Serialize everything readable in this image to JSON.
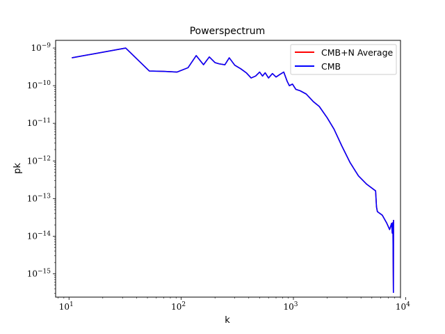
{
  "chart_data": {
    "type": "line",
    "title": "Powerspectrum",
    "xlabel": "k",
    "ylabel": "pk",
    "xscale": "log",
    "yscale": "log",
    "xlim": [
      7.6,
      9000
    ],
    "ylim": [
      2.4e-16,
      1.6e-09
    ],
    "xticks": [
      {
        "value": 10,
        "label": "10",
        "exp": "1"
      },
      {
        "value": 100,
        "label": "10",
        "exp": "2"
      },
      {
        "value": 1000,
        "label": "10",
        "exp": "3"
      },
      {
        "value": 10000,
        "label": "10",
        "exp": "4"
      }
    ],
    "yticks": [
      {
        "value": 1e-09,
        "label": "10",
        "exp": "−9"
      },
      {
        "value": 1e-10,
        "label": "10",
        "exp": "−10"
      },
      {
        "value": 1e-11,
        "label": "10",
        "exp": "−11"
      },
      {
        "value": 1e-12,
        "label": "10",
        "exp": "−12"
      },
      {
        "value": 1e-13,
        "label": "10",
        "exp": "−13"
      },
      {
        "value": 1e-14,
        "label": "10",
        "exp": "−14"
      },
      {
        "value": 1e-15,
        "label": "10",
        "exp": "−15"
      }
    ],
    "grid": false,
    "legend_position": "top-right",
    "series": [
      {
        "name": "CMB+N Average",
        "color": "#ff0000",
        "x": [
          10.6,
          32,
          52,
          70,
          92,
          115,
          136,
          158,
          178,
          200,
          218,
          245,
          268,
          300,
          340,
          380,
          420,
          460,
          500,
          530,
          560,
          600,
          650,
          700,
          760,
          820,
          880,
          920,
          980,
          1050,
          1150,
          1300,
          1500,
          1700,
          2000,
          2300,
          2700,
          3200,
          3800,
          4500,
          5400,
          5500,
          5600,
          6200,
          6800,
          7200,
          7500,
          7600,
          7700,
          7780,
          7800
        ],
        "y": [
          5.5e-10,
          1e-09,
          2.45e-10,
          2.4e-10,
          2.3e-10,
          3e-10,
          6.3e-10,
          3.6e-10,
          5.8e-10,
          4.1e-10,
          3.8e-10,
          3.6e-10,
          5.5e-10,
          3.5e-10,
          2.8e-10,
          2.2e-10,
          1.6e-10,
          1.8e-10,
          2.3e-10,
          1.8e-10,
          2.2e-10,
          1.6e-10,
          2.1e-10,
          1.7e-10,
          2e-10,
          2.3e-10,
          1.3e-10,
          1e-10,
          1.1e-10,
          8e-11,
          7.3e-11,
          6e-11,
          3.8e-11,
          2.8e-11,
          1.4e-11,
          7e-12,
          2.5e-12,
          9e-13,
          4e-13,
          2.4e-13,
          1.6e-13,
          6e-14,
          4.5e-14,
          3.6e-14,
          2.2e-14,
          1.5e-14,
          2.2e-14,
          1.2e-14,
          2.3e-14,
          3.2e-16,
          2.7e-14
        ]
      },
      {
        "name": "CMB",
        "color": "#0000ff",
        "x": [
          10.6,
          32,
          52,
          70,
          92,
          115,
          136,
          158,
          178,
          200,
          218,
          245,
          268,
          300,
          340,
          380,
          420,
          460,
          500,
          530,
          560,
          600,
          650,
          700,
          760,
          820,
          880,
          920,
          980,
          1050,
          1150,
          1300,
          1500,
          1700,
          2000,
          2300,
          2700,
          3200,
          3800,
          4500,
          5400,
          5500,
          5600,
          6200,
          6800,
          7200,
          7500,
          7600,
          7700,
          7780,
          7800
        ],
        "y": [
          5.5e-10,
          1e-09,
          2.45e-10,
          2.4e-10,
          2.3e-10,
          3e-10,
          6.3e-10,
          3.6e-10,
          5.8e-10,
          4.1e-10,
          3.8e-10,
          3.6e-10,
          5.5e-10,
          3.5e-10,
          2.8e-10,
          2.2e-10,
          1.6e-10,
          1.8e-10,
          2.3e-10,
          1.8e-10,
          2.2e-10,
          1.6e-10,
          2.1e-10,
          1.7e-10,
          2e-10,
          2.3e-10,
          1.3e-10,
          1e-10,
          1.1e-10,
          8e-11,
          7.3e-11,
          6e-11,
          3.8e-11,
          2.8e-11,
          1.4e-11,
          7e-12,
          2.5e-12,
          9e-13,
          4e-13,
          2.4e-13,
          1.6e-13,
          6e-14,
          4.5e-14,
          3.6e-14,
          2.2e-14,
          1.5e-14,
          2.2e-14,
          1.2e-14,
          2.3e-14,
          3.2e-16,
          2.7e-14
        ]
      }
    ]
  }
}
